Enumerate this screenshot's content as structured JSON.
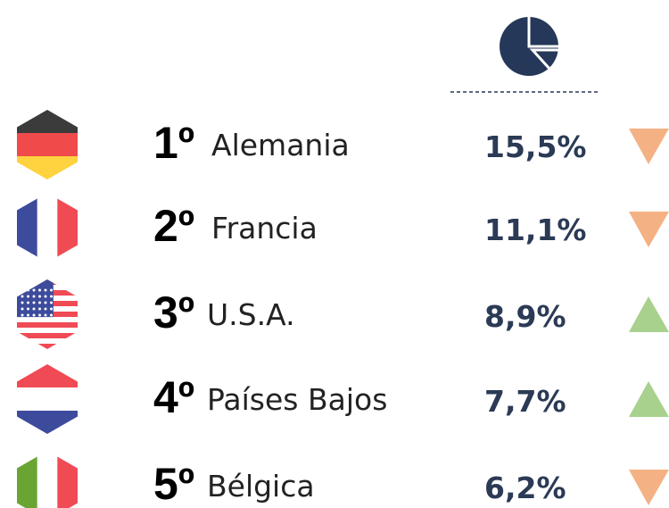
{
  "rows": [
    {
      "rank": "1º",
      "name": "Alemania",
      "share": "15,5%",
      "trend": "down"
    },
    {
      "rank": "2º",
      "name": "Francia",
      "share": "11,1%",
      "trend": "down"
    },
    {
      "rank": "3º",
      "name": "U.S.A.",
      "share": "8,9%",
      "trend": "up"
    },
    {
      "rank": "4º",
      "name": "Países Bajos",
      "share": "7,7%",
      "trend": "up"
    },
    {
      "rank": "5º",
      "name": "Bélgica",
      "share": "6,2%",
      "trend": "down"
    }
  ]
}
